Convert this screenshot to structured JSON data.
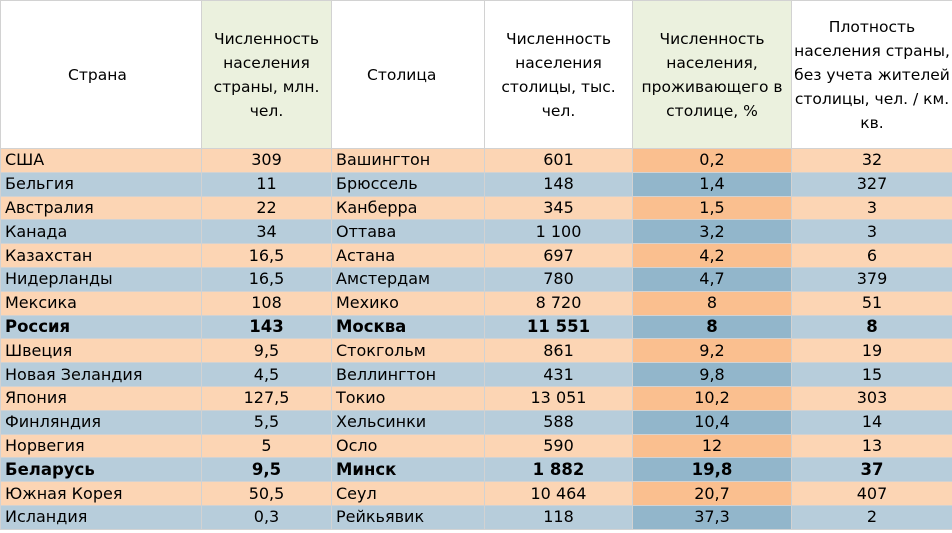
{
  "table": {
    "headers": [
      "Страна",
      "Численность населения страны, млн. чел.",
      "Столица",
      "Численность населения столицы, тыс. чел.",
      "Численность населения, проживающего в столице, %",
      "Плотность населения страны, без учета жителей столицы, чел. / км. кв."
    ],
    "rows": [
      [
        "США",
        "309",
        "Вашингтон",
        "601",
        "0,2",
        "32"
      ],
      [
        "Бельгия",
        "11",
        "Брюссель",
        "148",
        "1,4",
        "327"
      ],
      [
        "Австралия",
        "22",
        "Канберра",
        "345",
        "1,5",
        "3"
      ],
      [
        "Канада",
        "34",
        "Оттава",
        "1 100",
        "3,2",
        "3"
      ],
      [
        "Казахстан",
        "16,5",
        "Астана",
        "697",
        "4,2",
        "6"
      ],
      [
        "Нидерланды",
        "16,5",
        "Амстердам",
        "780",
        "4,7",
        "379"
      ],
      [
        "Мексика",
        "108",
        "Мехико",
        "8 720",
        "8",
        "51"
      ],
      [
        "Россия",
        "143",
        "Москва",
        "11 551",
        "8",
        "8"
      ],
      [
        "Швеция",
        "9,5",
        "Стокгольм",
        "861",
        "9,2",
        "19"
      ],
      [
        "Новая Зеландия",
        "4,5",
        "Веллингтон",
        "431",
        "9,8",
        "15"
      ],
      [
        "Япония",
        "127,5",
        "Токио",
        "13 051",
        "10,2",
        "303"
      ],
      [
        "Финляндия",
        "5,5",
        "Хельсинки",
        "588",
        "10,4",
        "14"
      ],
      [
        "Норвегия",
        "5",
        "Осло",
        "590",
        "12",
        "13"
      ],
      [
        "Беларусь",
        "9,5",
        "Минск",
        "1 882",
        "19,8",
        "37"
      ],
      [
        "Южная Корея",
        "50,5",
        "Сеул",
        "10 464",
        "20,7",
        "407"
      ],
      [
        "Исландия",
        "0,3",
        "Рейкьявик",
        "118",
        "37,3",
        "2"
      ]
    ],
    "bold_rows": [
      7,
      13
    ],
    "colors": {
      "peach_row": "#fcd5b4",
      "blue_row": "#b7cddb",
      "orange_highlight": "#fabf8f",
      "blue_highlight": "#92b6cb",
      "green_header": "#ebf1de",
      "grid": "#d2d2d2"
    }
  }
}
